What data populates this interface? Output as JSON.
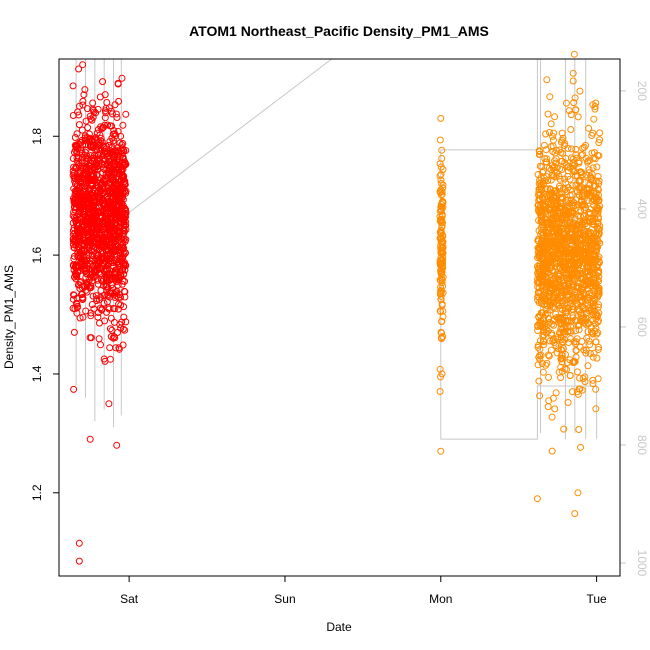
{
  "chart_data": {
    "type": "scatter",
    "title": "ATOM1 Northeast_Pacific Density_PM1_AMS",
    "xlabel": "Date",
    "ylabel": "Density_PM1_AMS",
    "x_ticks": [
      {
        "label": "Sat",
        "day": 1.0
      },
      {
        "label": "Sun",
        "day": 2.0
      },
      {
        "label": "Mon",
        "day": 3.0
      },
      {
        "label": "Tue",
        "day": 4.0
      }
    ],
    "xlim": [
      0.55,
      4.15
    ],
    "ylim": [
      1.06,
      1.93
    ],
    "y_ticks": [
      1.2,
      1.4,
      1.6,
      1.8
    ],
    "y2_ticks": [
      200,
      400,
      600,
      800,
      1000
    ],
    "y2lim": [
      1022,
      146
    ],
    "grid": false,
    "series": [
      {
        "color": "#ff0000",
        "segments": [
          {
            "x0": 0.64,
            "x1": 0.98,
            "center": 1.66,
            "spread": 0.11,
            "n": 1400
          }
        ],
        "outliers": [
          {
            "x": 0.68,
            "y": 1.115
          },
          {
            "x": 0.68,
            "y": 1.085
          },
          {
            "x": 0.75,
            "y": 1.29
          },
          {
            "x": 0.87,
            "y": 1.35
          },
          {
            "x": 0.92,
            "y": 1.28
          },
          {
            "x": 0.83,
            "y": 1.892
          },
          {
            "x": 0.93,
            "y": 1.888
          },
          {
            "x": 0.71,
            "y": 1.87
          }
        ]
      },
      {
        "color": "#ff8c00",
        "segments": [
          {
            "x0": 2.995,
            "x1": 3.015,
            "center": 1.62,
            "spread": 0.1,
            "n": 130
          },
          {
            "x0": 3.62,
            "x1": 4.02,
            "center": 1.6,
            "spread": 0.13,
            "n": 1500
          }
        ],
        "outliers": [
          {
            "x": 3.0,
            "y": 1.27
          },
          {
            "x": 2.998,
            "y": 1.395
          },
          {
            "x": 3.0,
            "y": 1.83
          },
          {
            "x": 3.62,
            "y": 1.19
          },
          {
            "x": 3.86,
            "y": 1.165
          },
          {
            "x": 3.88,
            "y": 1.2
          },
          {
            "x": 3.68,
            "y": 1.895
          },
          {
            "x": 3.85,
            "y": 1.893
          },
          {
            "x": 3.99,
            "y": 1.85
          }
        ]
      }
    ],
    "altitude_trace": {
      "color": "#c8c8c8",
      "points": [
        {
          "x": 0.98,
          "alt": 410
        },
        {
          "x": 2.3,
          "alt": 146
        },
        {
          "x": 3.62,
          "alt": 146
        },
        {
          "x": 3.62,
          "alt": 300
        },
        {
          "x": 3.0,
          "alt": 300
        },
        {
          "x": 3.0,
          "alt": 790
        },
        {
          "x": 3.62,
          "alt": 790
        },
        {
          "x": 3.62,
          "alt": 700
        },
        {
          "x": 4.0,
          "alt": 700
        },
        {
          "x": 4.0,
          "alt": 790
        }
      ],
      "spikes": [
        {
          "x": 0.66,
          "top": 146,
          "bottom": 700
        },
        {
          "x": 0.72,
          "top": 146,
          "bottom": 720
        },
        {
          "x": 0.78,
          "top": 146,
          "bottom": 760
        },
        {
          "x": 0.84,
          "top": 146,
          "bottom": 740
        },
        {
          "x": 0.9,
          "top": 146,
          "bottom": 770
        },
        {
          "x": 0.95,
          "top": 146,
          "bottom": 750
        },
        {
          "x": 3.64,
          "top": 146,
          "bottom": 780
        },
        {
          "x": 3.8,
          "top": 146,
          "bottom": 790
        },
        {
          "x": 3.86,
          "top": 146,
          "bottom": 780
        },
        {
          "x": 3.93,
          "top": 146,
          "bottom": 790
        }
      ]
    }
  }
}
